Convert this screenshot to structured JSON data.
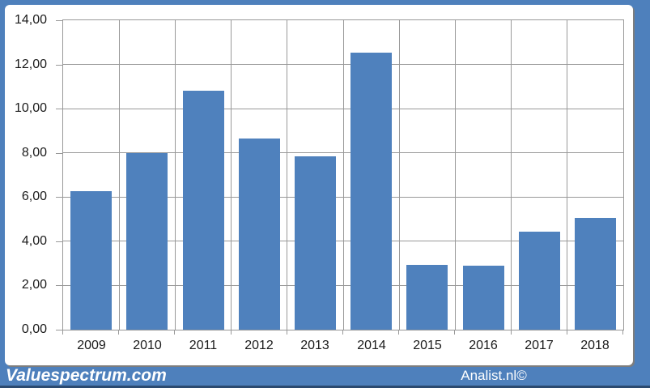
{
  "footer": {
    "left_brand": "Valuespectrum.com",
    "right_brand": "Analist.nl©"
  },
  "colors": {
    "frame_blue": "#4E80BC",
    "bar_blue": "#4F81BD",
    "plot_background": "#FFFFFF",
    "gridline_gray": "#999999",
    "axis_text": "#1A1A1A",
    "footer_text": "#FFFFFF",
    "bottom_strip": "#2B4A70"
  },
  "chart_data": {
    "type": "bar",
    "title": "",
    "xlabel": "",
    "ylabel": "",
    "categories": [
      "2009",
      "2010",
      "2011",
      "2012",
      "2013",
      "2014",
      "2015",
      "2016",
      "2017",
      "2018"
    ],
    "values": [
      6.25,
      8.0,
      10.8,
      8.65,
      7.85,
      12.55,
      2.95,
      2.9,
      4.45,
      5.05
    ],
    "ylim": [
      0,
      14
    ],
    "ytick_step": 2,
    "y_tick_labels": [
      "0,00",
      "2,00",
      "4,00",
      "6,00",
      "8,00",
      "10,00",
      "12,00",
      "14,00"
    ],
    "decimal_separator": ",",
    "grid": true,
    "legend": false,
    "bar_gap_ratio": 0.13
  }
}
